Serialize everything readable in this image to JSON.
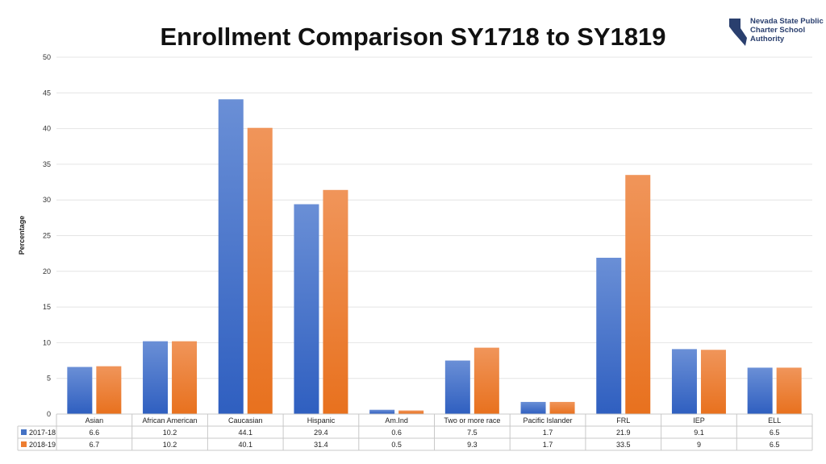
{
  "header": {
    "title": "Enrollment Comparison SY1718 to SY1819",
    "logo_text": "Nevada State Public Charter School Authority"
  },
  "colors": {
    "series_2017": "#4472c4",
    "series_2018": "#ed7d31",
    "logo": "#2a3f6e"
  },
  "chart_data": {
    "type": "bar",
    "title": "Enrollment Comparison SY1718 to SY1819",
    "ylabel": "Percentage",
    "xlabel": "",
    "ylim": [
      0,
      50
    ],
    "yticks": [
      0,
      5,
      10,
      15,
      20,
      25,
      30,
      35,
      40,
      45,
      50
    ],
    "grid": true,
    "legend": "data-table",
    "categories": [
      "Asian",
      "African American",
      "Caucasian",
      "Hispanic",
      "Am.Ind",
      "Two or more race",
      "Pacific Islander",
      "FRL",
      "IEP",
      "ELL"
    ],
    "series": [
      {
        "name": "2017-18",
        "values": [
          6.6,
          10.2,
          44.1,
          29.4,
          0.6,
          7.5,
          1.7,
          21.9,
          9.1,
          6.5
        ]
      },
      {
        "name": "2018-19",
        "values": [
          6.7,
          10.2,
          40.1,
          31.4,
          0.5,
          9.3,
          1.7,
          33.5,
          9,
          6.5
        ]
      }
    ]
  }
}
